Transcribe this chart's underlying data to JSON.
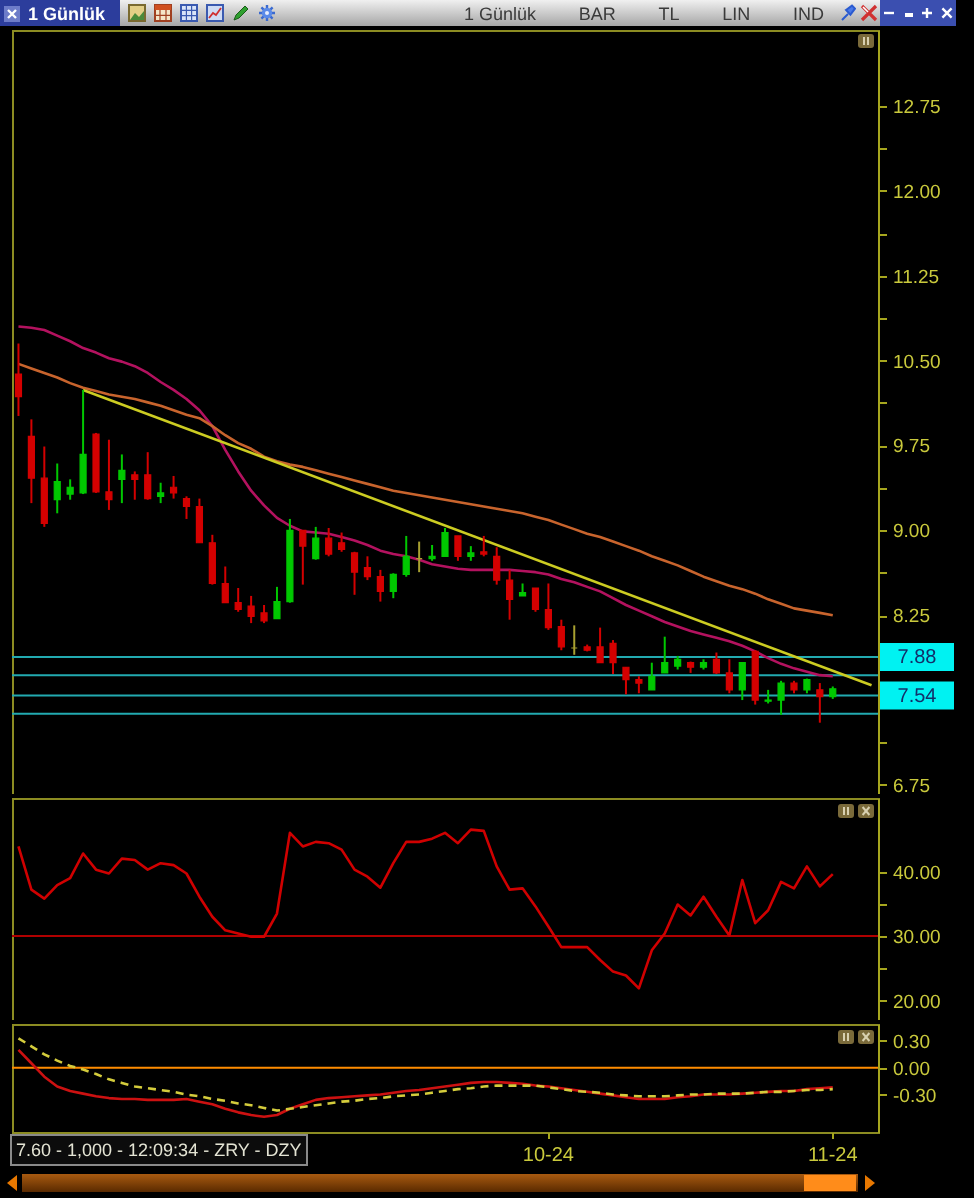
{
  "chart_data": [
    {
      "type": "candlestick",
      "title": "1 Günlük",
      "annotations": [
        "1 Günlük",
        "BAR",
        "TL",
        "LIN",
        "IND"
      ],
      "categories": [
        null,
        null,
        null,
        null,
        null,
        null,
        null,
        null,
        null,
        null,
        null,
        null,
        null,
        null,
        null,
        null,
        null,
        null,
        null,
        null,
        null,
        null,
        null,
        null,
        null,
        null,
        null,
        null,
        null,
        null,
        null,
        null,
        null,
        null,
        null,
        null,
        null,
        null,
        null,
        null,
        null,
        null,
        null,
        null,
        null,
        null,
        null,
        null,
        null,
        null,
        null,
        null,
        null,
        null,
        null,
        null,
        null,
        null,
        null,
        null,
        null,
        null,
        null,
        null,
        null,
        null,
        null
      ],
      "ohlc": [
        [
          10.38,
          10.65,
          10.01,
          10.18
        ],
        [
          9.83,
          9.98,
          9.24,
          9.46
        ],
        [
          9.46,
          9.74,
          9.03,
          9.06
        ],
        [
          9.27,
          9.59,
          9.15,
          9.43
        ],
        [
          9.32,
          9.45,
          9.27,
          9.38
        ],
        [
          9.33,
          10.24,
          9.32,
          9.67
        ],
        [
          9.85,
          9.86,
          9.33,
          9.34
        ],
        [
          9.34,
          9.8,
          9.18,
          9.27
        ],
        [
          9.45,
          9.67,
          9.24,
          9.53
        ],
        [
          9.49,
          9.52,
          9.27,
          9.45
        ],
        [
          9.49,
          9.69,
          9.27,
          9.28
        ],
        [
          9.3,
          9.42,
          9.24,
          9.33
        ],
        [
          9.38,
          9.48,
          9.28,
          9.33
        ],
        [
          9.28,
          9.3,
          9.1,
          9.21
        ],
        [
          9.21,
          9.28,
          8.89,
          8.89
        ],
        [
          8.89,
          8.96,
          8.52,
          8.53
        ],
        [
          8.53,
          8.68,
          8.36,
          8.36
        ],
        [
          8.36,
          8.49,
          8.28,
          8.3
        ],
        [
          8.33,
          8.42,
          8.18,
          8.24
        ],
        [
          8.27,
          8.34,
          8.18,
          8.2
        ],
        [
          8.22,
          8.5,
          8.22,
          8.37
        ],
        [
          8.37,
          9.1,
          8.36,
          9.0
        ],
        [
          9.0,
          9.0,
          8.52,
          8.86
        ],
        [
          8.75,
          9.03,
          8.74,
          8.93
        ],
        [
          8.93,
          9.02,
          8.77,
          8.79
        ],
        [
          8.89,
          8.98,
          8.81,
          8.83
        ],
        [
          8.8,
          8.81,
          8.43,
          8.63
        ],
        [
          8.67,
          8.77,
          8.56,
          8.59
        ],
        [
          8.59,
          8.65,
          8.37,
          8.46
        ],
        [
          8.46,
          8.62,
          8.4,
          8.61
        ],
        [
          8.61,
          8.95,
          8.59,
          8.77
        ],
        [
          8.75,
          8.9,
          8.63,
          8.75
        ],
        [
          8.75,
          8.87,
          8.73,
          8.77
        ],
        [
          8.77,
          9.02,
          8.77,
          8.98
        ],
        [
          8.95,
          8.95,
          8.73,
          8.77
        ],
        [
          8.77,
          8.86,
          8.73,
          8.8
        ],
        [
          8.81,
          8.95,
          8.77,
          8.79
        ],
        [
          8.77,
          8.85,
          8.52,
          8.56
        ],
        [
          8.56,
          8.65,
          8.21,
          8.39
        ],
        [
          8.42,
          8.53,
          8.42,
          8.45
        ],
        [
          8.49,
          8.49,
          8.28,
          8.3
        ],
        [
          8.3,
          8.53,
          8.12,
          8.14
        ],
        [
          8.15,
          8.21,
          7.94,
          7.97
        ],
        [
          7.96,
          8.16,
          7.9,
          7.96
        ],
        [
          7.97,
          7.99,
          7.93,
          7.94
        ],
        [
          7.97,
          8.14,
          7.83,
          7.83
        ],
        [
          8.0,
          8.03,
          7.73,
          7.83
        ],
        [
          7.79,
          7.79,
          7.55,
          7.68
        ],
        [
          7.68,
          7.71,
          7.56,
          7.65
        ],
        [
          7.59,
          7.83,
          7.59,
          7.71
        ],
        [
          7.74,
          8.06,
          7.74,
          7.83
        ],
        [
          7.8,
          7.89,
          7.77,
          7.86
        ],
        [
          7.83,
          7.84,
          7.74,
          7.79
        ],
        [
          7.79,
          7.86,
          7.77,
          7.83
        ],
        [
          7.86,
          7.92,
          7.73,
          7.74
        ],
        [
          7.74,
          7.86,
          7.56,
          7.59
        ],
        [
          7.59,
          7.83,
          7.5,
          7.83
        ],
        [
          7.93,
          7.94,
          7.46,
          7.5
        ],
        [
          7.49,
          7.59,
          7.47,
          7.5
        ],
        [
          7.5,
          7.67,
          7.37,
          7.65
        ],
        [
          7.65,
          7.67,
          7.56,
          7.59
        ],
        [
          7.59,
          7.69,
          7.56,
          7.68
        ],
        [
          7.59,
          7.65,
          7.3,
          7.53
        ],
        [
          7.53,
          7.62,
          7.51,
          7.6
        ],
        null,
        null,
        null
      ],
      "colors": [
        "#d40000",
        "#d40000",
        "#d40000",
        "#00c800",
        "#00c800",
        "#00c800",
        "#d40000",
        "#d40000",
        "#00c800",
        "#d40000",
        "#d40000",
        "#00c800",
        "#d40000",
        "#d40000",
        "#d40000",
        "#d40000",
        "#d40000",
        "#d40000",
        "#d40000",
        "#d40000",
        "#00c800",
        "#00c800",
        "#d40000",
        "#00c800",
        "#d40000",
        "#d40000",
        "#d40000",
        "#d40000",
        "#d40000",
        "#00c800",
        "#00c800",
        "#a8a030",
        "#00c800",
        "#00c800",
        "#d40000",
        "#00c800",
        "#d40000",
        "#d40000",
        "#d40000",
        "#00c800",
        "#d40000",
        "#d40000",
        "#d40000",
        "#a8a030",
        "#d40000",
        "#d40000",
        "#d40000",
        "#d40000",
        "#d40000",
        "#00c800",
        "#00c800",
        "#00c800",
        "#d40000",
        "#00c800",
        "#d40000",
        "#d40000",
        "#00c800",
        "#d40000",
        "#00c800",
        "#00c800",
        "#d40000",
        "#00c800",
        "#d40000",
        "#00c800",
        null,
        null,
        null
      ],
      "series": [
        {
          "type": "line",
          "color": "#b3125f",
          "values": [
            10.8,
            10.79,
            10.77,
            10.72,
            10.67,
            10.61,
            10.57,
            10.52,
            10.49,
            10.45,
            10.39,
            10.31,
            10.24,
            10.16,
            10.06,
            9.92,
            9.71,
            9.52,
            9.35,
            9.22,
            9.11,
            9.04,
            8.99,
            8.98,
            8.97,
            8.94,
            8.91,
            8.87,
            8.82,
            8.79,
            8.77,
            8.74,
            8.7,
            8.68,
            8.66,
            8.65,
            8.65,
            8.65,
            8.65,
            8.64,
            8.63,
            8.61,
            8.57,
            8.54,
            8.5,
            8.46,
            8.4,
            8.34,
            8.29,
            8.24,
            8.19,
            8.15,
            8.11,
            8.08,
            8.05,
            8.02,
            7.98,
            7.93,
            7.87,
            7.82,
            7.78,
            7.75,
            7.72,
            7.71,
            null,
            null,
            null
          ]
        },
        {
          "type": "line",
          "color": "#c8642d",
          "values": [
            10.47,
            10.43,
            10.39,
            10.35,
            10.3,
            10.26,
            10.23,
            10.2,
            10.18,
            10.16,
            10.13,
            10.1,
            10.06,
            10.02,
            9.99,
            9.92,
            9.84,
            9.77,
            9.72,
            9.65,
            9.61,
            9.58,
            9.56,
            9.53,
            9.5,
            9.47,
            9.44,
            9.41,
            9.38,
            9.35,
            9.33,
            9.31,
            9.29,
            9.27,
            9.25,
            9.23,
            9.21,
            9.19,
            9.17,
            9.15,
            9.12,
            9.09,
            9.05,
            9.01,
            8.97,
            8.94,
            8.9,
            8.86,
            8.82,
            8.77,
            8.73,
            8.69,
            8.64,
            8.59,
            8.55,
            8.51,
            8.48,
            8.44,
            8.39,
            8.35,
            8.31,
            8.29,
            8.27,
            8.25,
            null,
            null,
            null
          ]
        },
        {
          "type": "line",
          "color": "#cccc22",
          "values": [
            null,
            null,
            null,
            null,
            null,
            10.24,
            null,
            null,
            null,
            null,
            null,
            null,
            null,
            null,
            null,
            null,
            null,
            null,
            null,
            null,
            null,
            null,
            null,
            null,
            null,
            null,
            null,
            null,
            null,
            null,
            null,
            null,
            null,
            null,
            null,
            null,
            null,
            null,
            null,
            null,
            null,
            null,
            null,
            null,
            null,
            null,
            null,
            null,
            null,
            null,
            null,
            null,
            null,
            null,
            null,
            null,
            null,
            null,
            null,
            null,
            null,
            null,
            null,
            null,
            null,
            null,
            7.63
          ]
        }
      ],
      "ylim": [
        6.67,
        13.42
      ],
      "yticks": [
        6.75,
        {
          "value": 7.125,
          "label": null
        },
        8.25,
        {
          "value": 8.625,
          "label": null
        },
        {
          "value": 9,
          "label": "9.00"
        },
        {
          "value": 9.375,
          "label": null
        },
        9.75,
        {
          "value": 10.125,
          "label": null
        },
        {
          "value": 10.5,
          "label": "10.50"
        },
        {
          "value": 10.875,
          "label": null
        },
        11.25,
        {
          "value": 11.625,
          "label": null
        },
        {
          "value": 12,
          "label": "12.00"
        },
        {
          "value": 12.375,
          "label": null
        },
        12.75
      ],
      "ref_lines": [
        {
          "axis": "y",
          "value": 7.88,
          "label": "7.88",
          "color": "#22aab0"
        },
        {
          "axis": "y",
          "value": 7.72,
          "color": "#22aab0"
        },
        {
          "axis": "y",
          "value": 7.54,
          "label": "7.54",
          "color": "#22aab0"
        },
        {
          "axis": "y",
          "value": 7.38,
          "color": "#22aab0"
        }
      ],
      "tick_labels": "y"
    },
    {
      "type": "line",
      "categories": [
        null,
        null,
        null,
        null,
        null,
        null,
        null,
        null,
        null,
        null,
        null,
        null,
        null,
        null,
        null,
        null,
        null,
        null,
        null,
        null,
        null,
        null,
        null,
        null,
        null,
        null,
        null,
        null,
        null,
        null,
        null,
        null,
        null,
        null,
        null,
        null,
        null,
        null,
        null,
        null,
        null,
        null,
        null,
        null,
        null,
        null,
        null,
        null,
        null,
        null,
        null,
        null,
        null,
        null,
        null,
        null,
        null,
        null,
        null,
        null,
        null,
        null,
        null,
        null,
        null,
        null,
        null
      ],
      "series": [
        {
          "color": "#d00000",
          "values": [
            43.9,
            37.2,
            35.8,
            37.9,
            39.0,
            42.8,
            40.3,
            39.7,
            42.0,
            41.8,
            40.3,
            41.3,
            41.0,
            39.7,
            36.1,
            33.0,
            30.9,
            30.4,
            29.9,
            29.9,
            33.5,
            46.0,
            43.9,
            44.6,
            44.4,
            43.4,
            40.3,
            39.2,
            37.5,
            41.3,
            44.6,
            44.6,
            45.1,
            46.0,
            44.4,
            46.5,
            46.3,
            40.8,
            37.2,
            37.4,
            34.6,
            31.5,
            28.3,
            28.3,
            28.3,
            26.3,
            24.5,
            23.9,
            21.9,
            27.8,
            30.4,
            34.9,
            33.2,
            36.1,
            33.0,
            30.1,
            38.7,
            32.0,
            34.0,
            38.4,
            37.4,
            40.8,
            37.7,
            39.6,
            null,
            null,
            null
          ]
        }
      ],
      "ylim": [
        17,
        51.4
      ],
      "yticks": [
        {
          "value": 20,
          "label": "20.00"
        },
        {
          "value": 25,
          "label": null
        },
        {
          "value": 30,
          "label": "30.00"
        },
        {
          "value": 35,
          "label": null
        },
        {
          "value": 40,
          "label": "40.00"
        }
      ],
      "ref_lines": [
        {
          "axis": "y",
          "value": 30,
          "color": "#b00000"
        }
      ],
      "tick_labels": "y"
    },
    {
      "type": "line",
      "annotations": [
        "7.60 - 1,000 - 12:09:34 - ZRY - DZY"
      ],
      "categories": [
        null,
        null,
        null,
        null,
        null,
        null,
        null,
        null,
        null,
        null,
        null,
        null,
        null,
        null,
        null,
        null,
        null,
        null,
        null,
        null,
        null,
        null,
        null,
        null,
        null,
        null,
        null,
        null,
        null,
        null,
        null,
        null,
        null,
        null,
        null,
        null,
        null,
        null,
        null,
        null,
        null,
        "10-24",
        null,
        null,
        null,
        null,
        null,
        null,
        null,
        null,
        null,
        null,
        null,
        null,
        null,
        null,
        null,
        null,
        null,
        null,
        null,
        null,
        null,
        "11-24",
        null,
        null,
        null
      ],
      "series": [
        {
          "color": "#cc1111",
          "values": [
            0.2,
            0.05,
            -0.1,
            -0.21,
            -0.26,
            -0.29,
            -0.32,
            -0.34,
            -0.35,
            -0.35,
            -0.36,
            -0.36,
            -0.36,
            -0.35,
            -0.38,
            -0.41,
            -0.46,
            -0.5,
            -0.53,
            -0.55,
            -0.53,
            -0.46,
            -0.41,
            -0.36,
            -0.34,
            -0.33,
            -0.32,
            -0.31,
            -0.3,
            -0.28,
            -0.26,
            -0.25,
            -0.23,
            -0.21,
            -0.19,
            -0.17,
            -0.16,
            -0.16,
            -0.17,
            -0.18,
            -0.2,
            -0.21,
            -0.23,
            -0.25,
            -0.27,
            -0.29,
            -0.31,
            -0.33,
            -0.35,
            -0.35,
            -0.35,
            -0.33,
            -0.32,
            -0.3,
            -0.3,
            -0.3,
            -0.29,
            -0.28,
            -0.27,
            -0.26,
            -0.26,
            -0.24,
            -0.23,
            -0.22,
            null,
            null,
            null
          ]
        },
        {
          "color": "#d4cc3c",
          "line_style": "dashed",
          "values": [
            0.33,
            0.24,
            0.15,
            0.08,
            0.02,
            -0.02,
            -0.07,
            -0.13,
            -0.17,
            -0.21,
            -0.23,
            -0.25,
            -0.27,
            -0.3,
            -0.32,
            -0.35,
            -0.37,
            -0.4,
            -0.42,
            -0.45,
            -0.48,
            -0.46,
            -0.44,
            -0.42,
            -0.4,
            -0.38,
            -0.37,
            -0.35,
            -0.34,
            -0.32,
            -0.31,
            -0.3,
            -0.28,
            -0.26,
            -0.24,
            -0.23,
            -0.21,
            -0.2,
            -0.2,
            -0.2,
            -0.2,
            -0.22,
            -0.24,
            -0.26,
            -0.27,
            -0.28,
            -0.3,
            -0.31,
            -0.32,
            -0.32,
            -0.32,
            -0.31,
            -0.3,
            -0.3,
            -0.29,
            -0.29,
            -0.29,
            -0.28,
            -0.27,
            -0.27,
            -0.26,
            -0.25,
            -0.25,
            -0.24,
            null,
            null,
            null
          ]
        }
      ],
      "ylim": [
        -0.72,
        0.49
      ],
      "yticks": [
        {
          "value": -0.3,
          "label": "-0.30"
        },
        {
          "value": 0,
          "label": "0.00"
        },
        {
          "value": 0.3,
          "label": "0.30"
        }
      ],
      "ref_lines": [
        {
          "axis": "y",
          "value": 0,
          "color": "#ff8c00"
        }
      ]
    }
  ]
}
